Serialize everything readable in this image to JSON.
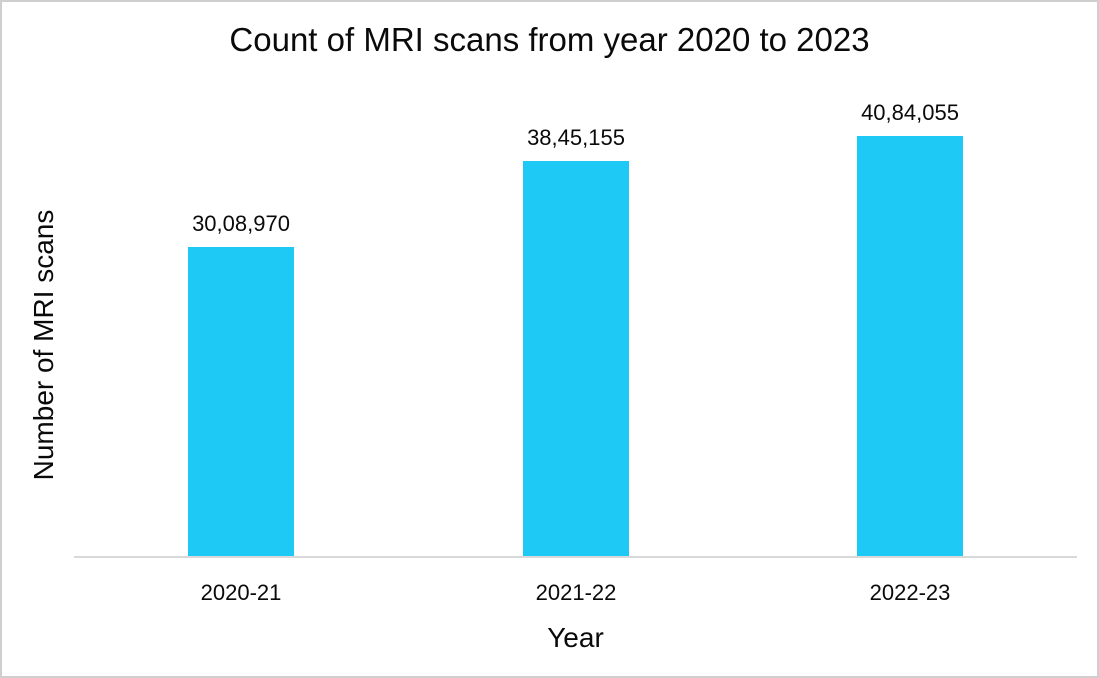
{
  "chart_data": {
    "type": "bar",
    "title": "Count of MRI scans from year 2020 to 2023",
    "categories": [
      "2020-21",
      "2021-22",
      "2022-23"
    ],
    "values": [
      3008970,
      3845155,
      4084055
    ],
    "data_labels": [
      "30,08,970",
      "38,45,155",
      "40,84,055"
    ],
    "xlabel": "Year",
    "ylabel": "Number of MRI scans",
    "ylim": [
      0,
      4084055
    ],
    "grid": false,
    "legend": "none",
    "bar_color": "#1EC9F5",
    "axis_line_color": "#D9D9D9",
    "frame_color": "#D0CECE",
    "number_format": "indian-grouping"
  }
}
